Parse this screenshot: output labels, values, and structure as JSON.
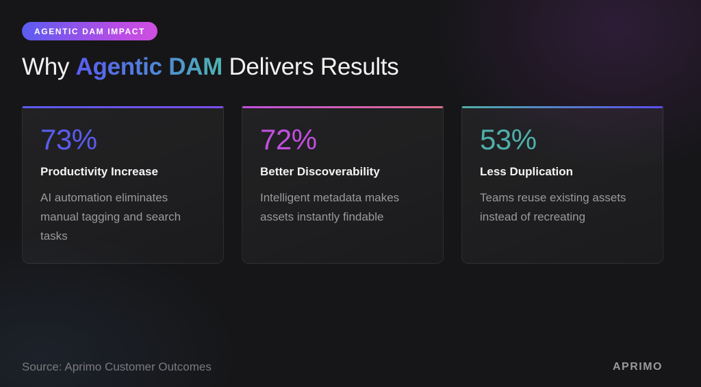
{
  "badge": {
    "label": "AGENTIC DAM IMPACT"
  },
  "title": {
    "prefix": "Why ",
    "accent": "Agentic DAM",
    "suffix": " Delivers Results"
  },
  "cards": [
    {
      "stat": "73%",
      "label": "Productivity Increase",
      "description": "AI automation eliminates manual tagging and search tasks",
      "stat_color": "#5b5cf0",
      "bar_gradient": [
        "#5b5cf0",
        "#7a4ff0"
      ]
    },
    {
      "stat": "72%",
      "label": "Better Discoverability",
      "description": "Intelligent metadata makes assets instantly findable",
      "stat_color": "#c24fe0",
      "bar_gradient": [
        "#c24fe0",
        "#e0708a"
      ]
    },
    {
      "stat": "53%",
      "label": "Less Duplication",
      "description": "Teams reuse existing assets instead of recreating",
      "stat_color": "#4fb0aa",
      "bar_gradient": [
        "#4fb0aa",
        "#5b4ff0"
      ]
    }
  ],
  "footer": {
    "source": "Source: Aprimo Customer Outcomes",
    "logo": "APRIMO"
  }
}
